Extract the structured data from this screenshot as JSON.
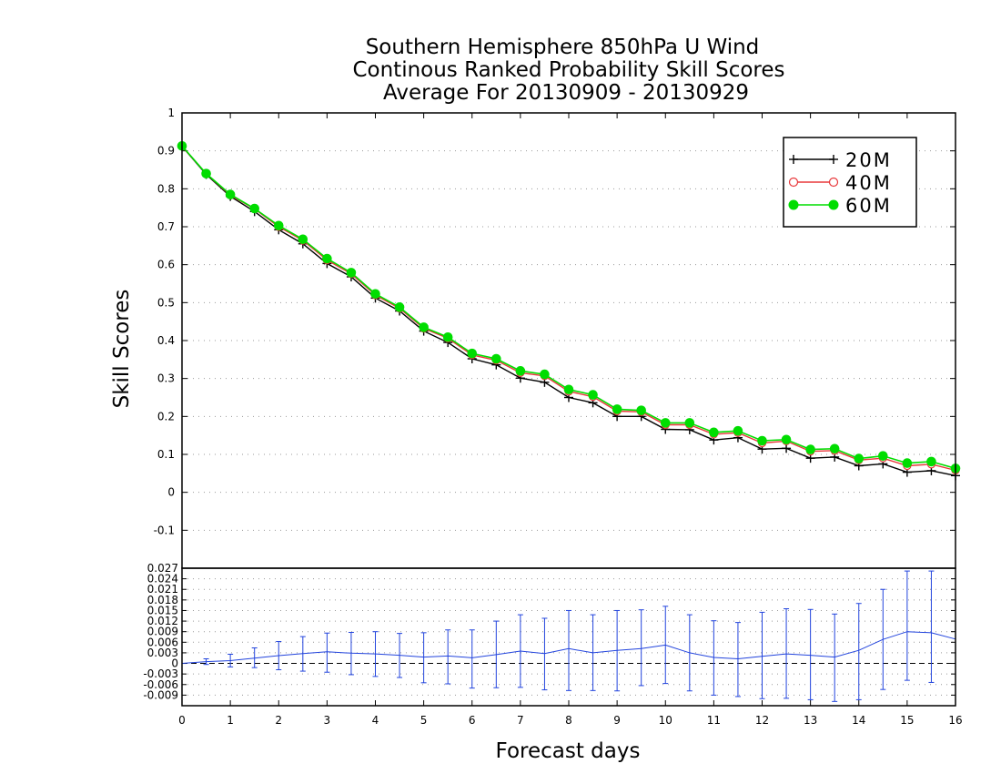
{
  "chart_data": [
    {
      "type": "line",
      "title": [
        "Southern Hemisphere 850hPa U Wind",
        "Continous Ranked Probability Skill Scores",
        "Average For 20130909 - 20130929"
      ],
      "ylabel": "Skill Scores",
      "ylim": [
        -0.2,
        1.0
      ],
      "yticks": [
        -0.1,
        0,
        0.1,
        0.2,
        0.3,
        0.4,
        0.5,
        0.6,
        0.7,
        0.8,
        0.9,
        1
      ],
      "ytick_labels": [
        "-0.1",
        "0",
        "0.1",
        "0.2",
        "0.3",
        "0.4",
        "0.5",
        "0.6",
        "0.7",
        "0.8",
        "0.9",
        "1"
      ],
      "xlim": [
        0,
        16
      ],
      "grid": true,
      "legend_position": "top-right",
      "x": [
        0,
        0.5,
        1,
        1.5,
        2,
        2.5,
        3,
        3.5,
        4,
        4.5,
        5,
        5.5,
        6,
        6.5,
        7,
        7.5,
        8,
        8.5,
        9,
        9.5,
        10,
        10.5,
        11,
        11.5,
        12,
        12.5,
        13,
        13.5,
        14,
        14.5,
        15,
        15.5,
        16
      ],
      "series": [
        {
          "name": "20M",
          "color": "#000000",
          "marker": "plus",
          "values": [
            0.912,
            0.838,
            0.78,
            0.74,
            0.692,
            0.655,
            0.603,
            0.568,
            0.512,
            0.478,
            0.425,
            0.395,
            0.352,
            0.336,
            0.301,
            0.29,
            0.25,
            0.236,
            0.2,
            0.2,
            0.166,
            0.165,
            0.138,
            0.144,
            0.114,
            0.116,
            0.09,
            0.093,
            0.07,
            0.075,
            0.053,
            0.057,
            0.044
          ]
        },
        {
          "name": "40M",
          "color": "#e8383b",
          "marker": "circle",
          "values": [
            0.912,
            0.84,
            0.783,
            0.747,
            0.7,
            0.664,
            0.612,
            0.576,
            0.52,
            0.485,
            0.432,
            0.406,
            0.362,
            0.348,
            0.315,
            0.307,
            0.266,
            0.252,
            0.214,
            0.212,
            0.178,
            0.178,
            0.153,
            0.157,
            0.13,
            0.135,
            0.108,
            0.11,
            0.085,
            0.09,
            0.07,
            0.074,
            0.058
          ]
        },
        {
          "name": "60M",
          "color": "#00dd00",
          "marker": "filled-circle",
          "values": [
            0.913,
            0.84,
            0.785,
            0.748,
            0.703,
            0.667,
            0.616,
            0.579,
            0.523,
            0.488,
            0.435,
            0.409,
            0.366,
            0.352,
            0.32,
            0.311,
            0.271,
            0.257,
            0.219,
            0.216,
            0.183,
            0.183,
            0.158,
            0.162,
            0.136,
            0.139,
            0.113,
            0.115,
            0.089,
            0.096,
            0.077,
            0.081,
            0.063
          ]
        }
      ]
    },
    {
      "type": "line",
      "xlabel": "Forecast days",
      "xlim": [
        0,
        16
      ],
      "xticks": [
        0,
        1,
        2,
        3,
        4,
        5,
        6,
        7,
        8,
        9,
        10,
        11,
        12,
        13,
        14,
        15,
        16
      ],
      "xtick_labels": [
        "0",
        "1",
        "2",
        "3",
        "4",
        "5",
        "6",
        "7",
        "8",
        "9",
        "10",
        "11",
        "12",
        "13",
        "14",
        "15",
        "16"
      ],
      "ylim": [
        -0.012,
        0.027
      ],
      "yticks": [
        -0.009,
        -0.006,
        -0.003,
        0,
        0.003,
        0.006,
        0.009,
        0.012,
        0.015,
        0.018,
        0.021,
        0.024,
        0.027
      ],
      "ytick_labels": [
        "-0.009",
        "-0.006",
        "-0.003",
        "0",
        "0.003",
        "0.006",
        "0.009",
        "0.012",
        "0.015",
        "0.018",
        "0.021",
        "0.024",
        "0.027"
      ],
      "grid": true,
      "x": [
        0,
        0.5,
        1,
        1.5,
        2,
        2.5,
        3,
        3.5,
        4,
        4.5,
        5,
        5.5,
        6,
        6.5,
        7,
        7.5,
        8,
        8.5,
        9,
        9.5,
        10,
        10.5,
        11,
        11.5,
        12,
        12.5,
        13,
        13.5,
        14,
        14.5,
        15,
        15.5,
        16
      ],
      "series": [
        {
          "color": "#2244dd",
          "values": [
            0.0,
            0.0005,
            0.0008,
            0.0015,
            0.0022,
            0.0028,
            0.0033,
            0.0029,
            0.0027,
            0.0023,
            0.0018,
            0.0021,
            0.0016,
            0.0025,
            0.0035,
            0.0028,
            0.0042,
            0.003,
            0.0037,
            0.0042,
            0.0052,
            0.003,
            0.0017,
            0.0013,
            0.002,
            0.0027,
            0.0023,
            0.0018,
            0.0037,
            0.0068,
            0.009,
            0.0087,
            0.0069
          ],
          "error_low": [
            null,
            -0.0003,
            -0.001,
            -0.0012,
            -0.0018,
            -0.0022,
            -0.0025,
            -0.0032,
            -0.0037,
            -0.004,
            -0.0055,
            -0.0058,
            -0.007,
            -0.0069,
            -0.0068,
            -0.0075,
            -0.0077,
            -0.0077,
            -0.0078,
            -0.0063,
            -0.0057,
            -0.0078,
            -0.009,
            -0.0094,
            -0.01,
            -0.0099,
            -0.0103,
            -0.0108,
            -0.0103,
            -0.0074,
            -0.0048,
            -0.0054,
            null
          ],
          "error_high": [
            null,
            0.0013,
            0.0026,
            0.0044,
            0.0062,
            0.0076,
            0.0086,
            0.0088,
            0.009,
            0.0085,
            0.0087,
            0.0095,
            0.0095,
            0.012,
            0.0138,
            0.0128,
            0.015,
            0.0138,
            0.015,
            0.0152,
            0.0162,
            0.0138,
            0.0121,
            0.0116,
            0.0145,
            0.0155,
            0.0153,
            0.014,
            0.017,
            0.021,
            0.0262,
            0.0262,
            0.021
          ]
        }
      ]
    }
  ]
}
